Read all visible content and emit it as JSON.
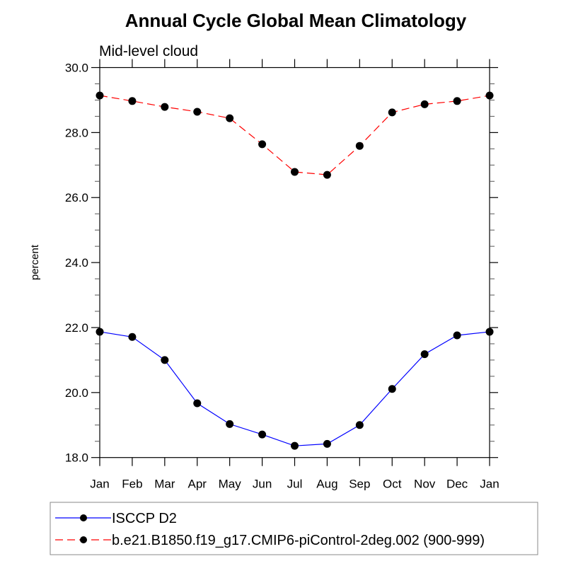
{
  "chart_data": {
    "type": "line",
    "title": "Annual Cycle Global Mean Climatology",
    "subtitle": "Mid-level cloud",
    "xlabel": "",
    "ylabel": "percent",
    "ylim": [
      18.0,
      30.0
    ],
    "yticks": [
      "18.0",
      "20.0",
      "22.0",
      "24.0",
      "26.0",
      "28.0",
      "30.0"
    ],
    "ytick_values": [
      18,
      20,
      22,
      24,
      26,
      28,
      30
    ],
    "yminor_step": 0.5,
    "categories": [
      "Jan",
      "Feb",
      "Mar",
      "Apr",
      "May",
      "Jun",
      "Jul",
      "Aug",
      "Sep",
      "Oct",
      "Nov",
      "Dec",
      "Jan"
    ],
    "grid": false,
    "legend_position": "bottom",
    "series": [
      {
        "name": "ISCCP D2",
        "color": "#0000ff",
        "dash": "solid",
        "marker": "filled-circle",
        "values": [
          21.87,
          21.71,
          21.0,
          19.67,
          19.03,
          18.71,
          18.36,
          18.42,
          19.0,
          20.11,
          21.18,
          21.76,
          21.87
        ]
      },
      {
        "name": "b.e21.B1850.f19_g17.CMIP6-piControl-2deg.002 (900-999)",
        "color": "#ff0000",
        "dash": "dashed",
        "marker": "filled-circle",
        "values": [
          29.14,
          28.97,
          28.79,
          28.64,
          28.44,
          27.64,
          26.79,
          26.7,
          27.59,
          28.62,
          28.87,
          28.97,
          29.14
        ]
      }
    ]
  }
}
